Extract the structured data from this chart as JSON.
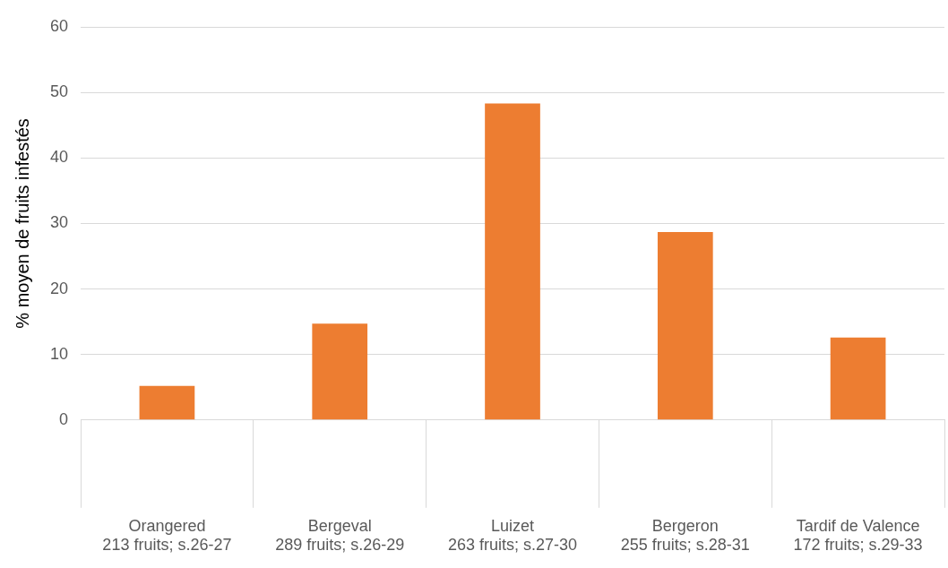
{
  "chart_data": {
    "type": "bar",
    "ylabel": "% moyen de fruits infestés",
    "categories": [
      "Orangered\n213 fruits; s.26-27",
      "Bergeval\n289 fruits; s.26-29",
      "Luizet\n263 fruits; s.27-30",
      "Bergeron\n255 fruits; s.28-31",
      "Tardif de Valence\n172 fruits; s.29-33"
    ],
    "values": [
      5.2,
      14.7,
      48.3,
      28.7,
      12.6
    ],
    "color": "#ed7d31",
    "ylim": [
      0,
      60
    ],
    "yticks": [
      0,
      10,
      20,
      30,
      40,
      50,
      60
    ],
    "grid": "y",
    "legend": false
  }
}
